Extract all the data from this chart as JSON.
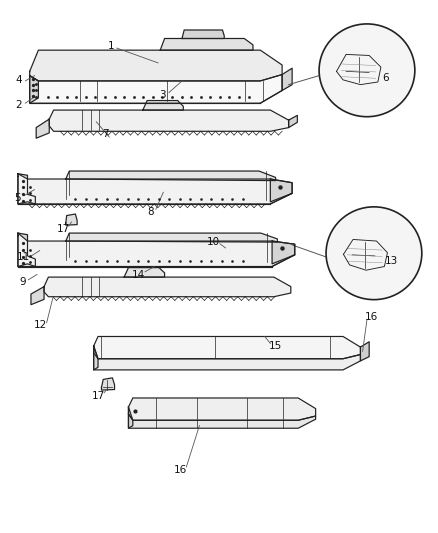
{
  "bg_color": "#ffffff",
  "line_color": "#222222",
  "fig_width": 4.38,
  "fig_height": 5.33,
  "dpi": 100,
  "font_size": 7.5
}
